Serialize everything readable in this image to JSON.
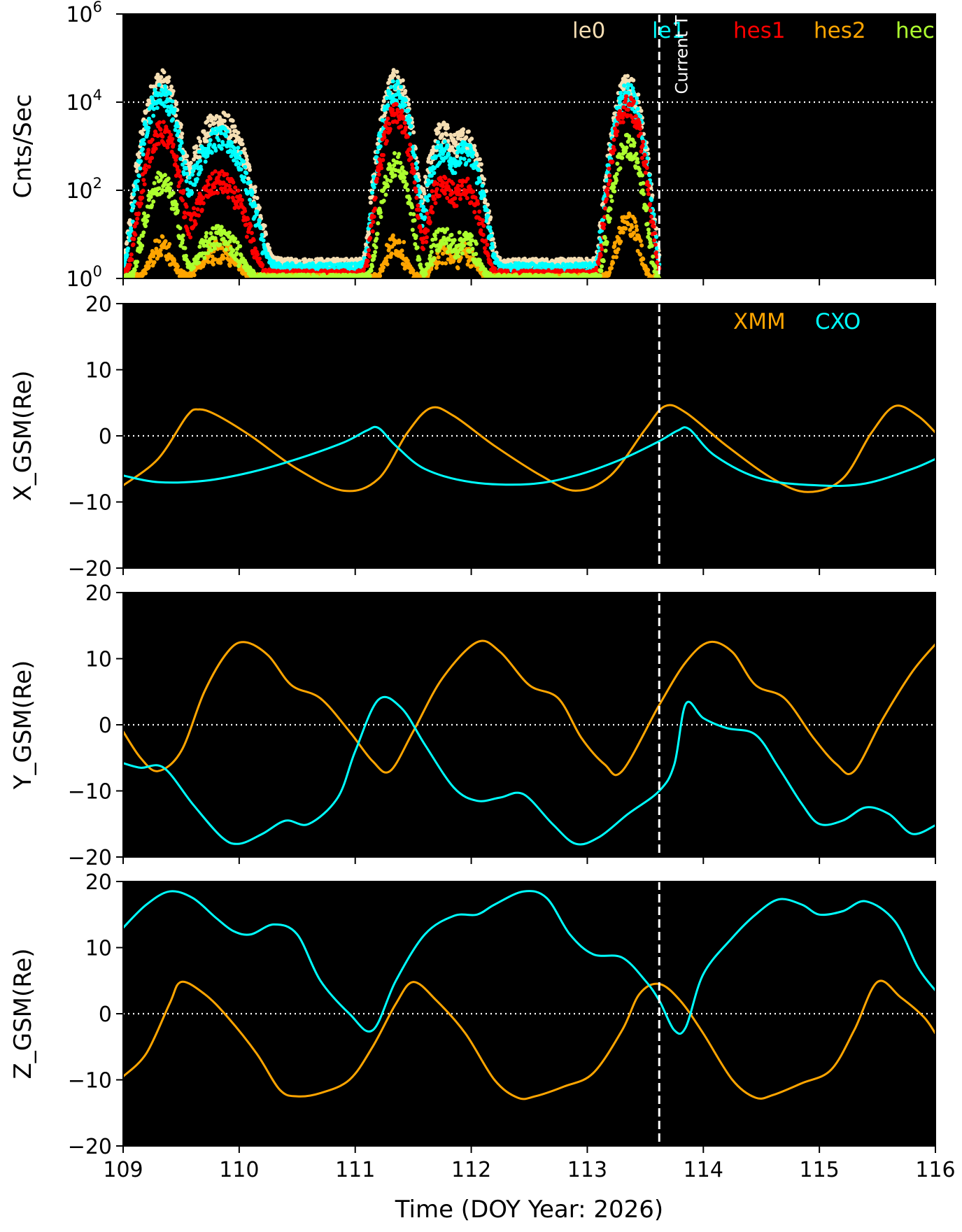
{
  "colors": {
    "le0": "#f5deb3",
    "le1": "#00ffff",
    "hes1": "#ff0000",
    "hes2": "#ffa500",
    "hec": "#adff2f",
    "XMM": "#ffa500",
    "CXO": "#00ffff",
    "background": "#000000",
    "reference_lines": "#ffffff"
  },
  "chart_data": [
    {
      "type": "scatter",
      "ylabel": "Cnts/Sec",
      "yscale": "log",
      "ylim": [
        1,
        1000000
      ],
      "yticks": [
        {
          "value": 1,
          "base": "10",
          "exp": "0"
        },
        {
          "value": 100,
          "base": "10",
          "exp": "2"
        },
        {
          "value": 10000,
          "base": "10",
          "exp": "4"
        },
        {
          "value": 1000000,
          "base": "10",
          "exp": "6"
        }
      ],
      "xlim": [
        109,
        116
      ],
      "reference_lines_y": [
        100,
        10000
      ],
      "legend": [
        "le0",
        "le1",
        "hes1",
        "hes2",
        "hec"
      ],
      "baselines": {
        "le0": 2.3,
        "le1": 1.8,
        "hes1": 1.25,
        "hes2": 1.0,
        "hec": 1.0
      },
      "peaks": [
        {
          "center": 109.33,
          "width": 0.07,
          "le0": 30000,
          "le1": 15000,
          "hes1": 2000,
          "hes2": 4,
          "hec": 150
        },
        {
          "center": 109.83,
          "width": 0.11,
          "le0": 3500,
          "le1": 1500,
          "hes1": 150,
          "hes2": 3,
          "hec": 8
        },
        {
          "center": 111.35,
          "width": 0.06,
          "le0": 30000,
          "le1": 18000,
          "hes1": 5000,
          "hes2": 5,
          "hec": 400
        },
        {
          "center": 111.75,
          "width": 0.06,
          "le0": 2000,
          "le1": 800,
          "hes1": 150,
          "hes2": 3,
          "hec": 8
        },
        {
          "center": 111.95,
          "width": 0.07,
          "le0": 1500,
          "le1": 700,
          "hes1": 100,
          "hes2": 3,
          "hec": 6
        },
        {
          "center": 113.35,
          "width": 0.06,
          "le0": 25000,
          "le1": 15000,
          "hes1": 8000,
          "hes2": 18,
          "hec": 1000
        }
      ],
      "data_end_x": 113.62
    },
    {
      "type": "line",
      "ylabel": "X_GSM(Re)",
      "ylim": [
        -20,
        20
      ],
      "yticks": [
        -20,
        -10,
        0,
        10,
        20
      ],
      "xlim": [
        109,
        116
      ],
      "reference_lines_y": [
        0
      ],
      "legend": [
        "XMM",
        "CXO"
      ],
      "series": [
        {
          "name": "XMM",
          "x": [
            109.0,
            109.3,
            109.55,
            109.65,
            109.8,
            110.1,
            110.5,
            110.9,
            111.2,
            111.45,
            111.65,
            111.85,
            112.2,
            112.6,
            112.9,
            113.2,
            113.5,
            113.67,
            113.85,
            114.2,
            114.6,
            114.9,
            115.2,
            115.45,
            115.65,
            115.85,
            116.0
          ],
          "values": [
            -7.5,
            -3.5,
            3.0,
            4.0,
            3.2,
            0.0,
            -5.0,
            -8.3,
            -6.5,
            0.5,
            4.2,
            3.0,
            -1.5,
            -6.0,
            -8.3,
            -6.0,
            1.0,
            4.5,
            3.5,
            -1.5,
            -6.5,
            -8.5,
            -6.5,
            0.5,
            4.5,
            3.0,
            0.5
          ]
        },
        {
          "name": "CXO",
          "x": [
            109.0,
            109.3,
            109.7,
            110.1,
            110.5,
            110.9,
            111.1,
            111.2,
            111.35,
            111.6,
            112.0,
            112.5,
            112.9,
            113.3,
            113.62,
            113.78,
            113.88,
            114.1,
            114.5,
            115.0,
            115.4,
            115.8,
            116.0
          ],
          "values": [
            -6.0,
            -7.0,
            -6.8,
            -5.5,
            -3.5,
            -1.0,
            0.8,
            1.2,
            -1.5,
            -5.0,
            -7.0,
            -7.3,
            -6.0,
            -3.5,
            -0.8,
            0.8,
            1.0,
            -3.0,
            -6.5,
            -7.5,
            -7.2,
            -5.0,
            -3.5
          ]
        }
      ]
    },
    {
      "type": "line",
      "ylabel": "Y_GSM(Re)",
      "ylim": [
        -20,
        20
      ],
      "yticks": [
        -20,
        -10,
        0,
        10,
        20
      ],
      "xlim": [
        109,
        116
      ],
      "reference_lines_y": [
        0
      ],
      "series": [
        {
          "name": "XMM",
          "x": [
            109.0,
            109.15,
            109.3,
            109.5,
            109.7,
            109.9,
            110.05,
            110.25,
            110.45,
            110.7,
            110.95,
            111.15,
            111.3,
            111.5,
            111.75,
            112.05,
            112.25,
            112.5,
            112.75,
            112.95,
            113.15,
            113.3,
            113.62,
            113.85,
            114.05,
            114.25,
            114.45,
            114.7,
            114.95,
            115.15,
            115.3,
            115.55,
            115.8,
            116.0
          ],
          "values": [
            -1.0,
            -5.0,
            -7.0,
            -4.0,
            5.0,
            11.0,
            12.5,
            10.5,
            6.0,
            4.0,
            -1.0,
            -5.5,
            -7.0,
            -1.0,
            7.0,
            12.5,
            11.0,
            6.0,
            4.0,
            -2.0,
            -6.0,
            -7.0,
            3.0,
            9.5,
            12.5,
            11.0,
            6.0,
            4.0,
            -2.0,
            -6.0,
            -7.0,
            1.0,
            8.0,
            12.2
          ]
        },
        {
          "name": "CXO",
          "x": [
            109.0,
            109.15,
            109.35,
            109.6,
            109.85,
            110.0,
            110.2,
            110.4,
            110.6,
            110.85,
            111.0,
            111.2,
            111.4,
            111.6,
            111.85,
            112.05,
            112.25,
            112.45,
            112.7,
            112.9,
            113.1,
            113.35,
            113.62,
            113.75,
            113.85,
            114.0,
            114.2,
            114.45,
            114.65,
            114.85,
            115.0,
            115.2,
            115.4,
            115.6,
            115.8,
            116.0
          ],
          "values": [
            -5.8,
            -6.5,
            -6.5,
            -12.0,
            -17.0,
            -18.0,
            -16.5,
            -14.5,
            -15.0,
            -11.0,
            -4.0,
            3.8,
            2.5,
            -3.0,
            -9.5,
            -11.5,
            -11.0,
            -10.5,
            -15.0,
            -18.0,
            -17.0,
            -13.5,
            -10.0,
            -6.0,
            3.2,
            1.0,
            -0.5,
            -1.5,
            -6.5,
            -12.0,
            -15.0,
            -14.5,
            -12.5,
            -13.5,
            -16.5,
            -15.2
          ]
        }
      ]
    },
    {
      "type": "line",
      "ylabel": "Z_GSM(Re)",
      "ylim": [
        -20,
        20
      ],
      "yticks": [
        -20,
        -10,
        0,
        10,
        20
      ],
      "xlim": [
        109,
        116
      ],
      "reference_lines_y": [
        0
      ],
      "series": [
        {
          "name": "XMM",
          "x": [
            109.0,
            109.2,
            109.4,
            109.5,
            109.7,
            109.9,
            110.15,
            110.35,
            110.5,
            110.7,
            110.95,
            111.15,
            111.35,
            111.5,
            111.7,
            111.95,
            112.2,
            112.4,
            112.55,
            112.8,
            113.05,
            113.3,
            113.45,
            113.62,
            113.8,
            114.0,
            114.25,
            114.45,
            114.6,
            114.85,
            115.1,
            115.3,
            115.5,
            115.7,
            115.9,
            116.0
          ],
          "values": [
            -9.5,
            -6.0,
            1.5,
            4.8,
            3.0,
            -0.5,
            -6.0,
            -11.5,
            -12.5,
            -12.0,
            -10.0,
            -5.0,
            1.5,
            4.8,
            2.0,
            -3.0,
            -10.0,
            -12.7,
            -12.5,
            -11.0,
            -9.0,
            -2.5,
            3.0,
            4.5,
            2.0,
            -3.0,
            -10.0,
            -12.7,
            -12.3,
            -10.5,
            -8.5,
            -2.5,
            4.8,
            2.5,
            -0.5,
            -3.0
          ]
        },
        {
          "name": "CXO",
          "x": [
            109.0,
            109.2,
            109.4,
            109.6,
            109.8,
            109.95,
            110.1,
            110.3,
            110.5,
            110.7,
            110.95,
            111.15,
            111.35,
            111.6,
            111.85,
            112.05,
            112.2,
            112.45,
            112.65,
            112.85,
            113.05,
            113.3,
            113.5,
            113.62,
            113.75,
            113.85,
            114.0,
            114.25,
            114.45,
            114.65,
            114.85,
            115.0,
            115.2,
            115.4,
            115.65,
            115.85,
            116.0
          ],
          "values": [
            13.0,
            16.5,
            18.5,
            17.5,
            14.5,
            12.5,
            12.0,
            13.5,
            12.0,
            5.0,
            0.0,
            -2.5,
            5.0,
            12.0,
            14.8,
            15.0,
            16.5,
            18.5,
            17.5,
            12.0,
            9.0,
            8.5,
            5.0,
            2.0,
            -2.5,
            -2.0,
            6.0,
            11.5,
            15.0,
            17.3,
            16.5,
            15.0,
            15.5,
            17.0,
            14.0,
            7.0,
            3.5
          ]
        }
      ]
    }
  ],
  "current_time": {
    "x": 113.62,
    "label": "Current T"
  },
  "x_axis": {
    "ticks": [
      "109",
      "110",
      "111",
      "112",
      "113",
      "114",
      "115",
      "116"
    ],
    "title": "Time (DOY Year: 2026)"
  }
}
